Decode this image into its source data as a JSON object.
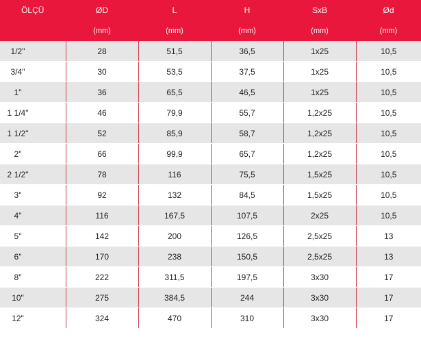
{
  "header": {
    "columns": [
      "ÖLÇÜ",
      "ØD",
      "L",
      "H",
      "SxB",
      "Ød"
    ],
    "units": [
      "",
      "(mm)",
      "(mm)",
      "(mm)",
      "(mm)",
      "(mm)"
    ]
  },
  "rows": [
    [
      "1/2\"",
      "28",
      "51,5",
      "36,5",
      "1x25",
      "10,5"
    ],
    [
      "3/4\"",
      "30",
      "53,5",
      "37,5",
      "1x25",
      "10,5"
    ],
    [
      "1\"",
      "36",
      "65,5",
      "46,5",
      "1x25",
      "10,5"
    ],
    [
      "1 1/4\"",
      "46",
      "79,9",
      "55,7",
      "1,2x25",
      "10,5"
    ],
    [
      "1 1/2\"",
      "52",
      "85,9",
      "58,7",
      "1,2x25",
      "10,5"
    ],
    [
      "2\"",
      "66",
      "99,9",
      "65,7",
      "1,2x25",
      "10,5"
    ],
    [
      "2 1/2\"",
      "78",
      "116",
      "75,5",
      "1,5x25",
      "10,5"
    ],
    [
      "3\"",
      "92",
      "132",
      "84,5",
      "1,5x25",
      "10,5"
    ],
    [
      "4\"",
      "116",
      "167,5",
      "107,5",
      "2x25",
      "10,5"
    ],
    [
      "5\"",
      "142",
      "200",
      "126,5",
      "2,5x25",
      "13"
    ],
    [
      "6\"",
      "170",
      "238",
      "150,5",
      "2,5x25",
      "13"
    ],
    [
      "8\"",
      "222",
      "311,5",
      "197,5",
      "3x30",
      "17"
    ],
    [
      "10\"",
      "275",
      "384,5",
      "244",
      "3x30",
      "17"
    ],
    [
      "12\"",
      "324",
      "470",
      "310",
      "3x30",
      "17"
    ]
  ]
}
